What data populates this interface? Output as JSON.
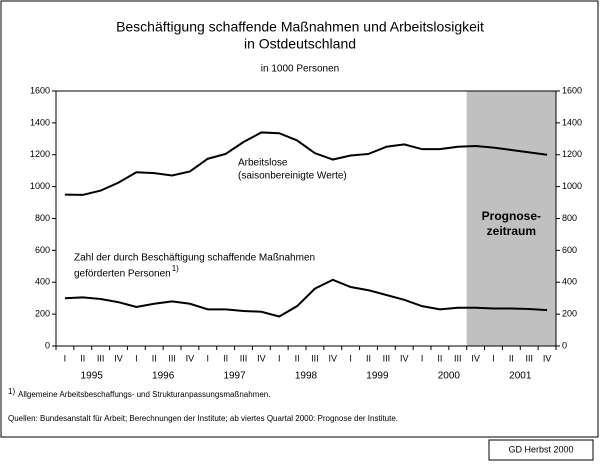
{
  "chart_data": {
    "type": "line",
    "title": [
      "Beschäftigung schaffende Maßnahmen und Arbeitslosigkeit",
      "in Ostdeutschland"
    ],
    "subtitle": "in 1000 Personen",
    "categories": [
      "I",
      "II",
      "III",
      "IV",
      "I",
      "II",
      "III",
      "IV",
      "I",
      "II",
      "III",
      "IV",
      "I",
      "II",
      "III",
      "IV",
      "I",
      "II",
      "III",
      "IV",
      "I",
      "II",
      "III",
      "IV",
      "I",
      "II",
      "III",
      "IV"
    ],
    "years": [
      "1995",
      "1996",
      "1997",
      "1998",
      "1999",
      "2000",
      "2001"
    ],
    "series": [
      {
        "name": "Arbeitslose",
        "sublabel": "(saisonbereinigte Werte)",
        "color": "#000000",
        "values": [
          950,
          948,
          975,
          1025,
          1090,
          1085,
          1070,
          1095,
          1175,
          1205,
          1280,
          1340,
          1335,
          1290,
          1210,
          1170,
          1195,
          1205,
          1250,
          1265,
          1235,
          1235,
          1250,
          1255,
          1245,
          1230,
          1215,
          1200
        ]
      },
      {
        "name": "Zahl der durch Beschäftigung schaffende Maßnahmen",
        "sublabel": "geförderten Personen",
        "footnote_ref": "1)",
        "color": "#000000",
        "values": [
          300,
          305,
          295,
          275,
          245,
          265,
          280,
          265,
          230,
          230,
          220,
          215,
          185,
          250,
          360,
          415,
          370,
          350,
          320,
          290,
          250,
          230,
          240,
          240,
          235,
          235,
          232,
          225
        ]
      }
    ],
    "ylim": [
      0,
      1600
    ],
    "yticks": [
      0,
      200,
      400,
      600,
      800,
      1000,
      1200,
      1400,
      1600
    ],
    "y2lim": [
      0,
      1600
    ],
    "y2ticks": [
      0,
      200,
      400,
      600,
      800,
      1000,
      1200,
      1400,
      1600
    ],
    "forecast": {
      "label": [
        "Prognose-",
        "zeitraum"
      ],
      "start_index": 23,
      "color": "#c0c0c0"
    },
    "footnote": {
      "ref": "1)",
      "text": "Allgemeine Arbeitsbeschaffungs- und Strukturanpassungsmaßnahmen."
    },
    "source": "Quellen: Bundesanstalt für Arbeit; Berechnungen der Institute; ab viertes Quartal 2000: Prognose der Institute.",
    "badge": "GD Herbst 2000"
  }
}
